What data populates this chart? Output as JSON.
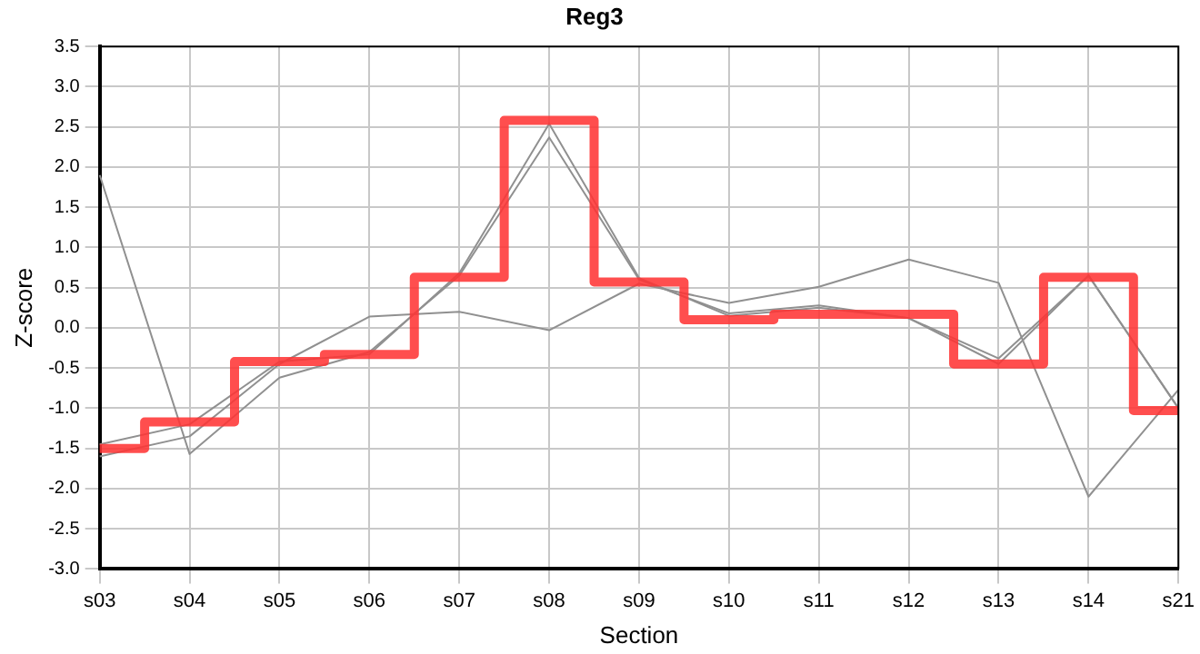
{
  "chart_data": {
    "type": "line",
    "title": "Reg3",
    "xlabel": "Section",
    "ylabel": "Z-score",
    "categories": [
      "s03",
      "s04",
      "s05",
      "s06",
      "s07",
      "s08",
      "s09",
      "s10",
      "s11",
      "s12",
      "s13",
      "s14",
      "s21"
    ],
    "series": [
      {
        "color": "#909090",
        "values": [
          1.9,
          -1.57,
          -0.62,
          -0.3,
          0.65,
          2.37,
          0.6,
          0.18,
          0.28,
          0.12,
          -0.38,
          0.65,
          -1.0
        ]
      },
      {
        "color": "#909090",
        "values": [
          -1.45,
          -1.2,
          -0.42,
          -0.33,
          0.68,
          2.54,
          0.62,
          0.15,
          0.25,
          0.12,
          -0.45,
          0.65,
          -1.0
        ]
      },
      {
        "color": "#909090",
        "values": [
          -1.6,
          -1.35,
          -0.45,
          0.14,
          0.2,
          -0.03,
          0.55,
          0.31,
          0.51,
          0.85,
          0.56,
          -2.1,
          -0.77
        ]
      },
      {
        "type": "step",
        "color": "#ff3333",
        "values": [
          -1.5,
          -1.17,
          -0.42,
          -0.33,
          0.63,
          2.58,
          0.57,
          0.1,
          0.17,
          0.17,
          -0.45,
          0.63,
          -1.03
        ]
      }
    ],
    "ylim": [
      -3.0,
      3.5
    ],
    "yticks": [
      {
        "value": -3,
        "label": "-3.0"
      },
      -2.5,
      {
        "value": -2,
        "label": "-2.0"
      },
      -1.5,
      {
        "value": -1,
        "label": "-1.0"
      },
      -0.5,
      {
        "value": 0,
        "label": "0.0"
      },
      0.5,
      {
        "value": 1,
        "label": "1.0"
      },
      1.5,
      {
        "value": 2,
        "label": "2.0"
      },
      2.5,
      {
        "value": 3,
        "label": "3.0"
      },
      3.5
    ],
    "grid": true,
    "legend": false,
    "marker": "none"
  }
}
